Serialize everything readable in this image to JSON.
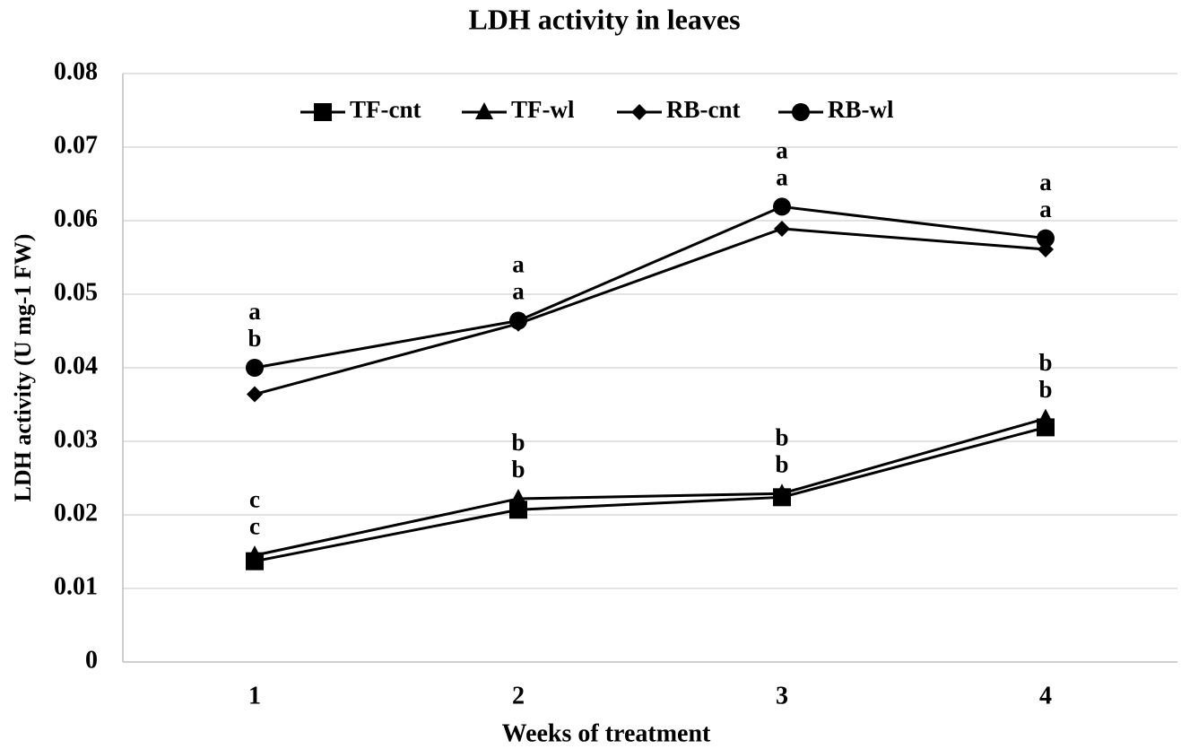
{
  "chart_data": {
    "type": "line",
    "title": "LDH activity in leaves",
    "x_label": "Weeks of treatment",
    "y_label": "LDH activity (U mg-1 FW)",
    "categories": [
      "1",
      "2",
      "3",
      "4"
    ],
    "ylim": [
      0,
      0.08
    ],
    "yticks": [
      0,
      0.01,
      0.02,
      0.03,
      0.04,
      0.05,
      0.06,
      0.07,
      0.08
    ],
    "grid": true,
    "legend": "top",
    "series": [
      {
        "name": "TF-cnt",
        "color": "#000000",
        "marker": "square",
        "values": [
          0.0137,
          0.0207,
          0.0224,
          0.0319
        ],
        "letters": [
          "c",
          "b",
          "b",
          "b"
        ]
      },
      {
        "name": "TF-wl",
        "color": "#000000",
        "marker": "triangle",
        "values": [
          0.0145,
          0.0222,
          0.0229,
          0.0331
        ],
        "letters": [
          "c",
          "b",
          "b",
          "b"
        ]
      },
      {
        "name": "RB-cnt",
        "color": "#000000",
        "marker": "diamond",
        "values": [
          0.0364,
          0.046,
          0.0589,
          0.0561
        ],
        "letters": [
          "b",
          "a",
          "a",
          "a"
        ]
      },
      {
        "name": "RB-wl",
        "color": "#000000",
        "marker": "circle",
        "values": [
          0.04,
          0.0464,
          0.0619,
          0.0576
        ],
        "letters": [
          "a",
          "a",
          "a",
          "a"
        ]
      }
    ]
  }
}
